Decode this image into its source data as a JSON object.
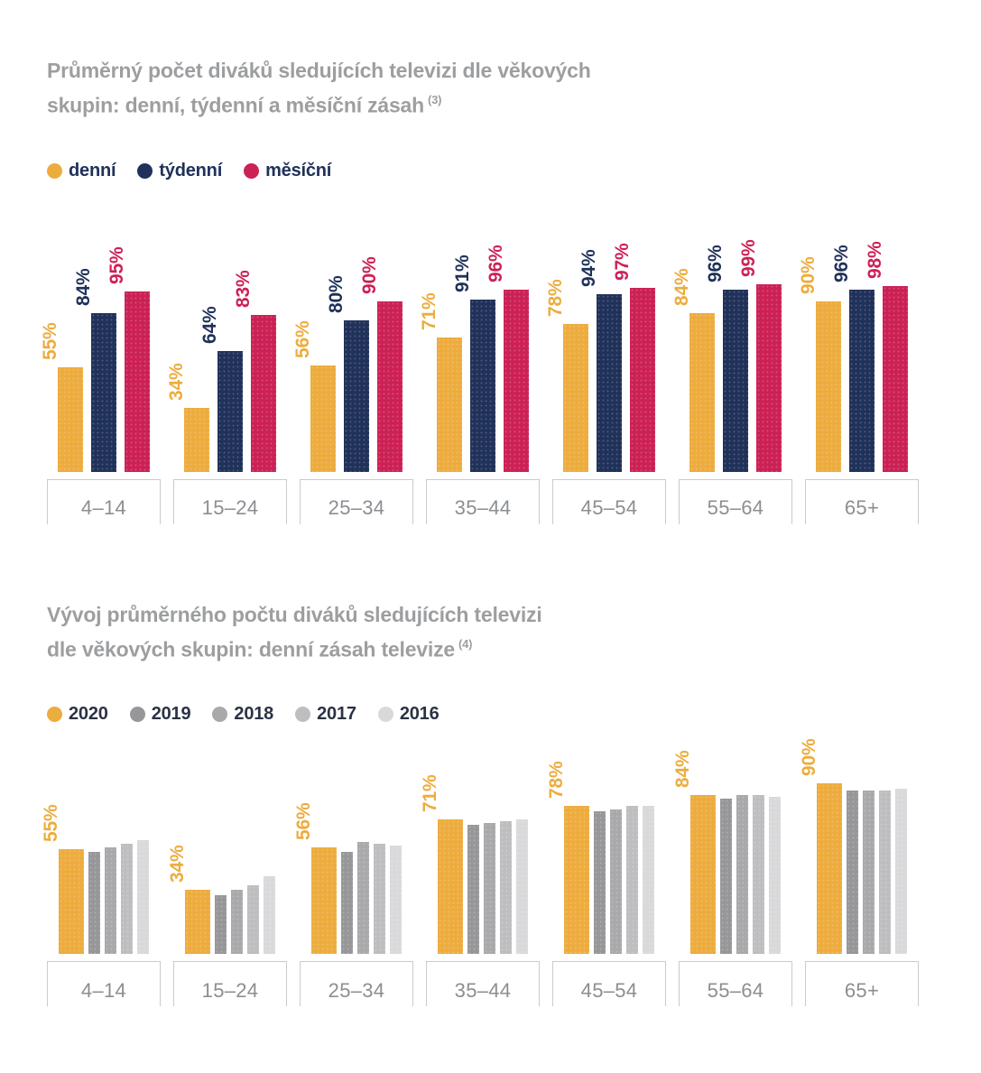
{
  "charts": [
    {
      "title": {
        "line1": "Průměrný počet diváků sledujících televizi dle věkových",
        "line2": "skupin: denní, týdenní a měsíční zásah",
        "footnote": "(3)"
      },
      "legend": [
        {
          "label": "denní",
          "color": "#edac3e"
        },
        {
          "label": "týdenní",
          "color": "#20315a"
        },
        {
          "label": "měsíční",
          "color": "#cc2155"
        }
      ],
      "chart_data": {
        "type": "bar",
        "categories": [
          "4–14",
          "15–24",
          "25–34",
          "35–44",
          "45–54",
          "55–64",
          "65+"
        ],
        "series": [
          {
            "name": "denní",
            "color": "#edac3e",
            "show_labels": true,
            "values": [
              55,
              34,
              56,
              71,
              78,
              84,
              90
            ]
          },
          {
            "name": "týdenní",
            "color": "#20315a",
            "show_labels": true,
            "values": [
              84,
              64,
              80,
              91,
              94,
              96,
              96
            ]
          },
          {
            "name": "měsíční",
            "color": "#cc2155",
            "show_labels": true,
            "values": [
              95,
              83,
              90,
              96,
              97,
              99,
              98
            ]
          }
        ],
        "unit": "%",
        "ylim": [
          0,
          100
        ],
        "grid": false,
        "legend_position": "top-left"
      }
    },
    {
      "title": {
        "line1": "Vývoj průměrného počtu diváků sledujících televizi",
        "line2": "dle věkových skupin: denní zásah televize",
        "footnote": "(4)"
      },
      "legend": [
        {
          "label": "2020",
          "color": "#edac3e"
        },
        {
          "label": "2019",
          "color": "#97979a"
        },
        {
          "label": "2018",
          "color": "#a9a9ab"
        },
        {
          "label": "2017",
          "color": "#bebec0"
        },
        {
          "label": "2016",
          "color": "#d9d9db"
        }
      ],
      "chart_data": {
        "type": "bar",
        "categories": [
          "4–14",
          "15–24",
          "25–34",
          "35–44",
          "45–54",
          "55–64",
          "65+"
        ],
        "series": [
          {
            "name": "2020",
            "color": "#edac3e",
            "show_labels": true,
            "values": [
              55,
              34,
              56,
              71,
              78,
              84,
              90
            ]
          },
          {
            "name": "2019",
            "color": "#97979a",
            "show_labels": false,
            "values": [
              54,
              31,
              54,
              68,
              75,
              82,
              86
            ]
          },
          {
            "name": "2018",
            "color": "#a9a9ab",
            "show_labels": false,
            "values": [
              56,
              34,
              59,
              69,
              76,
              84,
              86
            ]
          },
          {
            "name": "2017",
            "color": "#bebec0",
            "show_labels": false,
            "values": [
              58,
              36,
              58,
              70,
              78,
              84,
              86
            ]
          },
          {
            "name": "2016",
            "color": "#d9d9db",
            "show_labels": false,
            "values": [
              60,
              41,
              57,
              71,
              78,
              83,
              87
            ]
          }
        ],
        "unit": "%",
        "ylim": [
          0,
          100
        ],
        "grid": false,
        "legend_position": "top-left"
      }
    }
  ]
}
